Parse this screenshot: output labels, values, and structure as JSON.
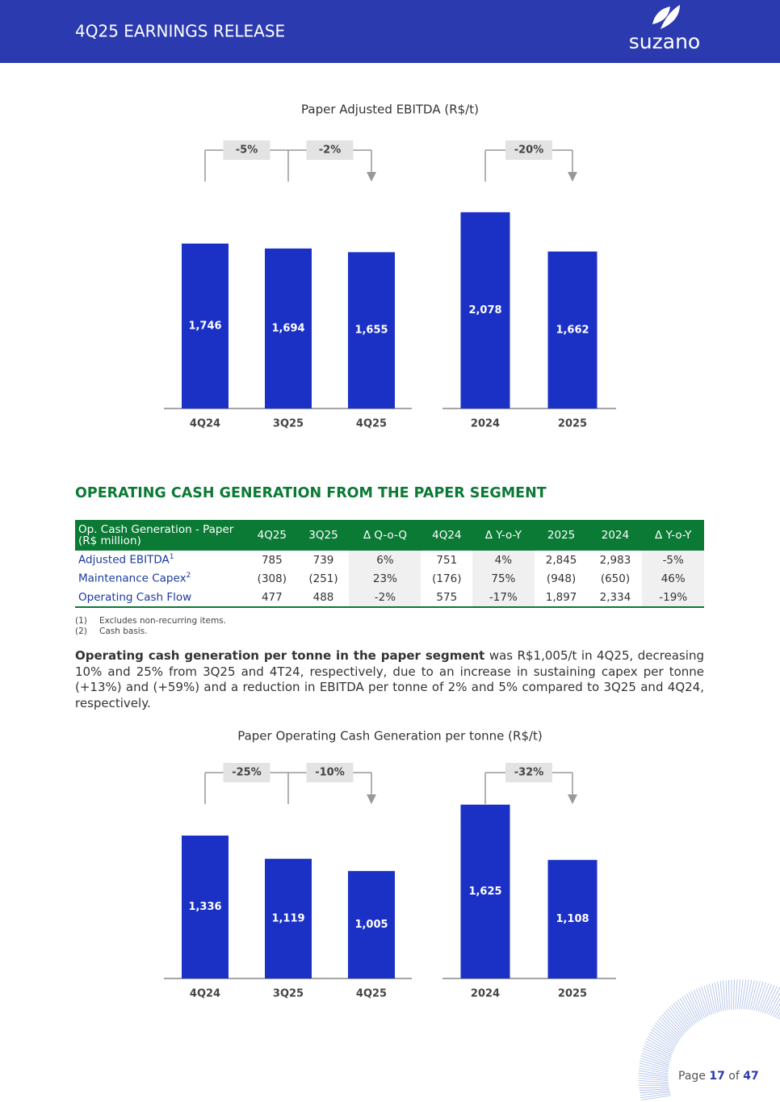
{
  "header": {
    "title": "4Q25 EARNINGS RELEASE",
    "logo": "suzano"
  },
  "charts": [
    {
      "type": "bar",
      "title": "Paper Adjusted EBITDA (R$/t)",
      "color": "#1b31c6",
      "groups": [
        {
          "categories": [
            "4Q24",
            "3Q25",
            "4Q25"
          ],
          "values": [
            1746,
            1694,
            1655
          ],
          "value_labels": [
            "1,746",
            "1,694",
            "1,655"
          ],
          "changes": [
            "-5%",
            "-2%"
          ]
        },
        {
          "categories": [
            "2024",
            "2025"
          ],
          "values": [
            2078,
            1662
          ],
          "value_labels": [
            "2,078",
            "1,662"
          ],
          "changes": [
            "-20%"
          ]
        }
      ]
    },
    {
      "type": "bar",
      "title": "Paper Operating Cash Generation per tonne (R$/t)",
      "color": "#1b31c6",
      "groups": [
        {
          "categories": [
            "4Q24",
            "3Q25",
            "4Q25"
          ],
          "values": [
            1336,
            1119,
            1005
          ],
          "value_labels": [
            "1,336",
            "1,119",
            "1,005"
          ],
          "changes": [
            "-25%",
            "-10%"
          ]
        },
        {
          "categories": [
            "2024",
            "2025"
          ],
          "values": [
            1625,
            1108
          ],
          "value_labels": [
            "1,625",
            "1,108"
          ],
          "changes": [
            "-32%"
          ]
        }
      ]
    }
  ],
  "section": {
    "title": "OPERATING CASH GENERATION FROM THE PAPER SEGMENT"
  },
  "table": {
    "header": [
      "Op. Cash Generation - Paper (R$ million)",
      "4Q25",
      "3Q25",
      "Δ Q-o-Q",
      "4Q24",
      "Δ Y-o-Y",
      "2025",
      "2024",
      "Δ Y-o-Y"
    ],
    "rows": [
      {
        "label": "Adjusted EBITDA",
        "note": "1",
        "cells": [
          "785",
          "739",
          "6%",
          "751",
          "4%",
          "2,845",
          "2,983",
          "-5%"
        ]
      },
      {
        "label": "Maintenance Capex",
        "note": "2",
        "cells": [
          "(308)",
          "(251)",
          "23%",
          "(176)",
          "75%",
          "(948)",
          "(650)",
          "46%"
        ]
      },
      {
        "label": "Operating Cash Flow",
        "cells": [
          "477",
          "488",
          "-2%",
          "575",
          "-17%",
          "1,897",
          "2,334",
          "-19%"
        ]
      }
    ]
  },
  "footnotes": [
    {
      "num": "(1)",
      "text": "Excludes non-recurring items."
    },
    {
      "num": "(2)",
      "text": "Cash basis."
    }
  ],
  "paragraph": {
    "bold": "Operating cash generation per tonne in the paper segment",
    "text": "was R$1,005/t in 4Q25, decreasing 10% and 25% from 3Q25 and 4T24, respectively, due to an increase in sustaining capex per tonne (+13%) and (+59%) and a reduction in EBITDA per tonne of 2% and 5% compared to 3Q25 and 4Q24, respectively."
  },
  "footer": {
    "label": "Page",
    "number": 17,
    "of": "of",
    "total": 47
  }
}
